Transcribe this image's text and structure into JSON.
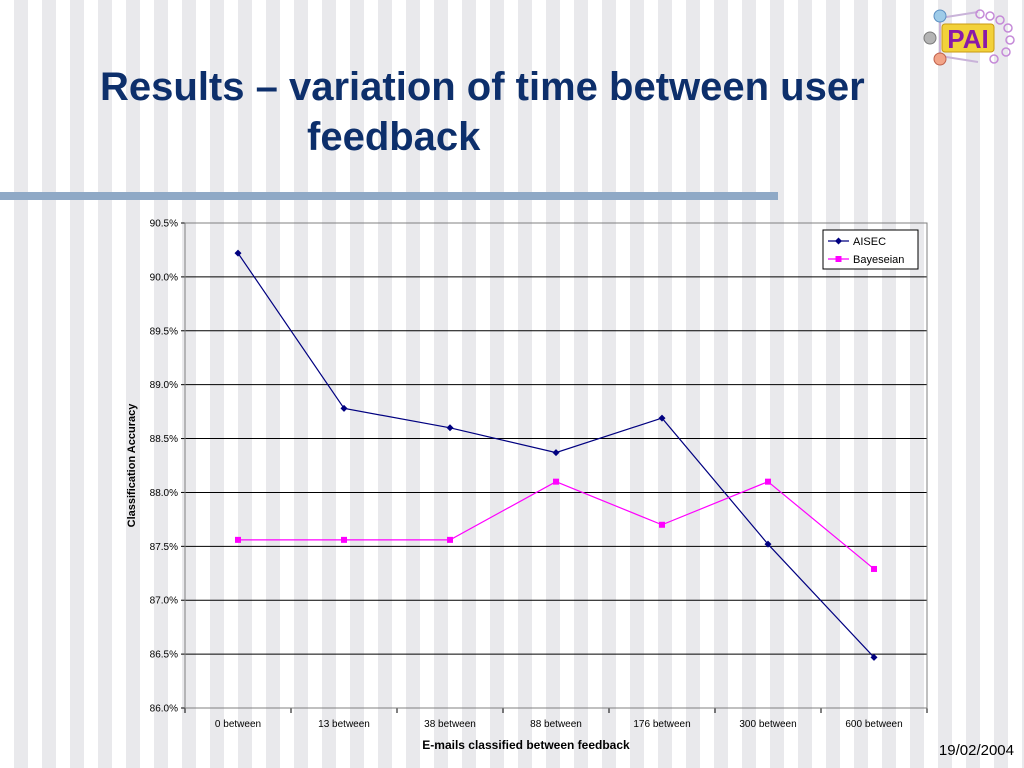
{
  "slide": {
    "title_line1": "Results – variation of time between user",
    "title_line2": "feedback",
    "date": "19/02/2004",
    "logo_text": "PAI"
  },
  "chart_data": {
    "type": "line",
    "categories": [
      "0 between",
      "13 between",
      "38 between",
      "88 between",
      "176 between",
      "300 between",
      "600 between"
    ],
    "series": [
      {
        "name": "AISEC",
        "color": "#000080",
        "marker": "diamond",
        "values": [
          90.22,
          88.78,
          88.6,
          88.37,
          88.69,
          87.52,
          86.47
        ]
      },
      {
        "name": "Bayeseian",
        "color": "#ff00ff",
        "marker": "square",
        "values": [
          87.56,
          87.56,
          87.56,
          88.1,
          87.7,
          88.1,
          87.29
        ]
      }
    ],
    "xlabel": "E-mails classified between feedback",
    "ylabel": "Classification Accuracy",
    "ylim": [
      86.0,
      90.5
    ],
    "ytick_step": 0.5,
    "ytick_format": "percent_1dp",
    "grid": true,
    "legend_position": "top-right"
  }
}
